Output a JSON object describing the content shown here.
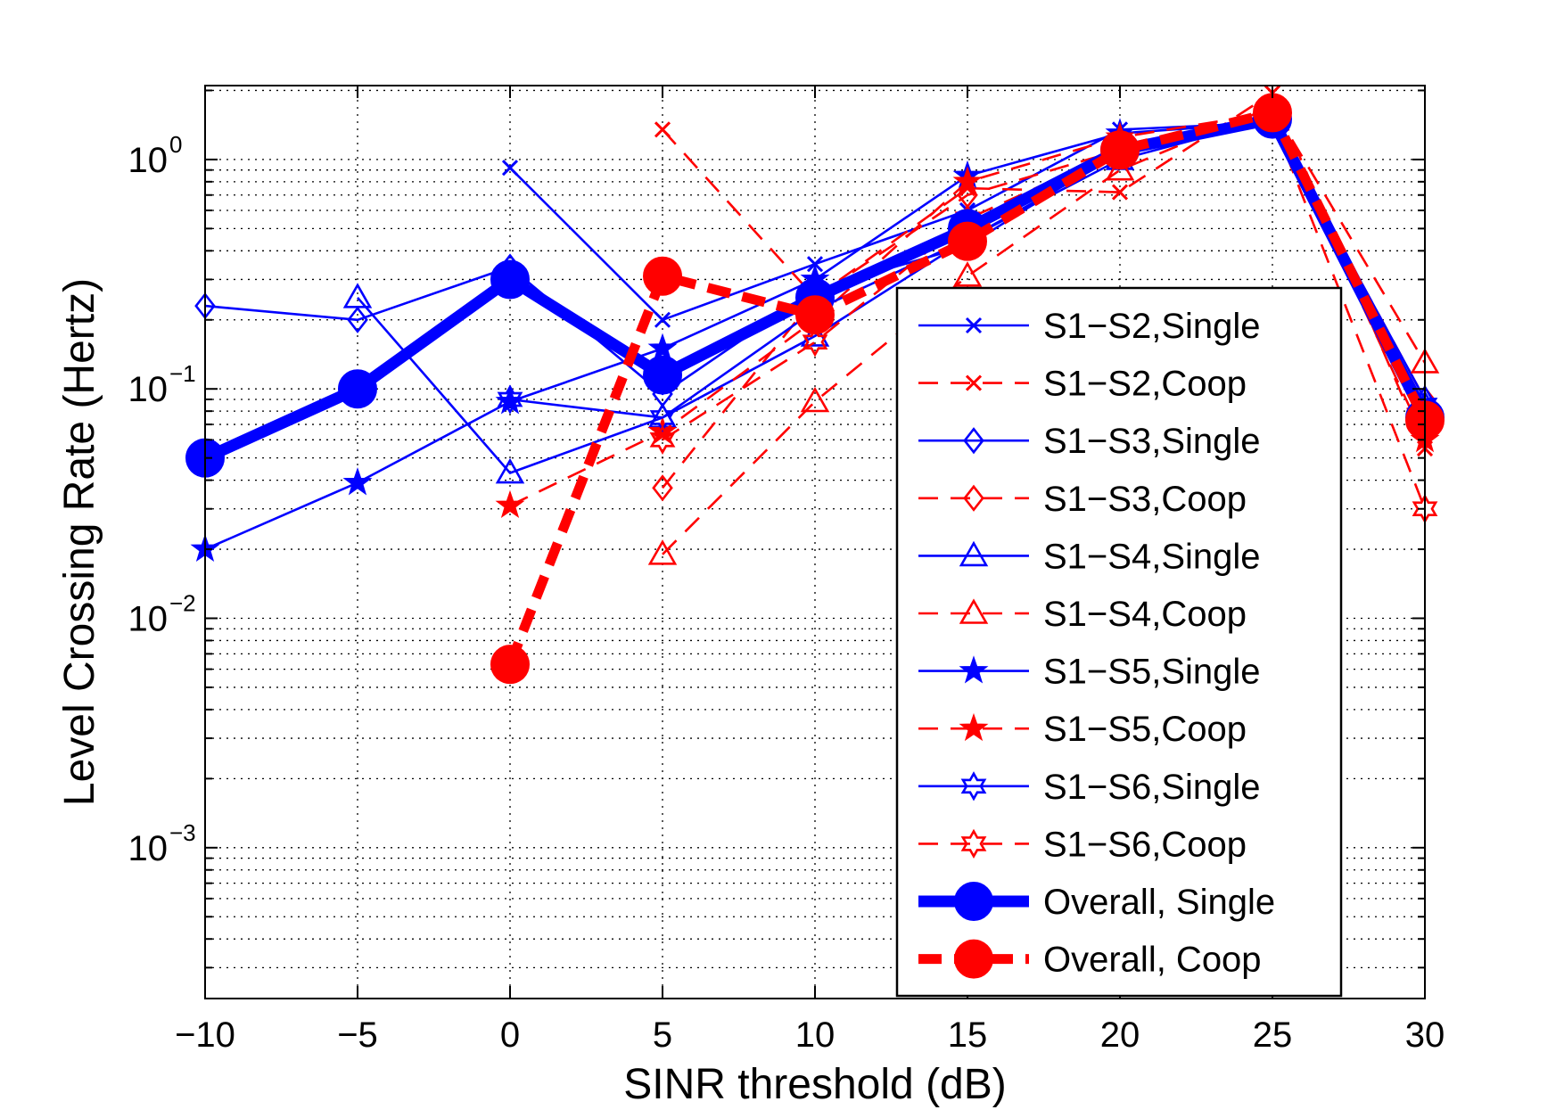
{
  "chart_data": {
    "type": "line",
    "xlabel": "SINR threshold (dB)",
    "ylabel": "Level Crossing Rate (Hertz)",
    "yscale": "log",
    "xlim": [
      -10,
      30
    ],
    "ylim": [
      0.00022,
      2.1
    ],
    "grid": true,
    "legend_position": "bottom-right",
    "x_ticks": [
      -10,
      -5,
      0,
      5,
      10,
      15,
      20,
      25,
      30
    ],
    "x_tick_labels": [
      "−10",
      "−5",
      "0",
      "5",
      "10",
      "15",
      "20",
      "25",
      "30"
    ],
    "y_ticks": [
      {
        "value": 1,
        "base": "10",
        "exp": "0"
      },
      {
        "value": 0.1,
        "base": "10",
        "exp": "−1"
      },
      {
        "value": 0.01,
        "base": "10",
        "exp": "−2"
      },
      {
        "value": 0.001,
        "base": "10",
        "exp": "−3"
      }
    ],
    "series": [
      {
        "name": "S1−S2,Single",
        "color": "#0000ff",
        "dash": "solid",
        "marker": "x",
        "width": "thin",
        "points": [
          [
            0,
            0.92
          ],
          [
            5,
            0.2
          ],
          [
            10,
            0.35
          ],
          [
            15,
            0.6
          ],
          [
            20,
            1.35
          ],
          [
            25,
            1.45
          ],
          [
            30,
            0.07
          ]
        ]
      },
      {
        "name": "S1−S2,Coop",
        "color": "#ff0000",
        "dash": "dashed",
        "marker": "x",
        "width": "thin",
        "points": [
          [
            5,
            1.35
          ],
          [
            10,
            0.25
          ],
          [
            15,
            0.75
          ],
          [
            20,
            0.72
          ],
          [
            25,
            1.95
          ],
          [
            30,
            0.055
          ]
        ]
      },
      {
        "name": "S1−S3,Single",
        "color": "#0000ff",
        "dash": "solid",
        "marker": "diamond",
        "width": "thin",
        "points": [
          [
            -10,
            0.23
          ],
          [
            -5,
            0.2
          ],
          [
            0,
            0.34
          ],
          [
            5,
            0.095
          ],
          [
            10,
            0.27
          ],
          [
            15,
            0.42
          ],
          [
            20,
            1.1
          ],
          [
            25,
            1.55
          ],
          [
            30,
            0.08
          ]
        ]
      },
      {
        "name": "S1−S3,Coop",
        "color": "#ff0000",
        "dash": "dashed",
        "marker": "diamond",
        "width": "thin",
        "points": [
          [
            5,
            0.037
          ],
          [
            10,
            0.25
          ],
          [
            15,
            0.7
          ],
          [
            20,
            1.1
          ],
          [
            25,
            1.5
          ],
          [
            30,
            0.09
          ]
        ]
      },
      {
        "name": "S1−S4,Single",
        "color": "#0000ff",
        "dash": "solid",
        "marker": "triangle",
        "width": "thin",
        "points": [
          [
            -5,
            0.25
          ],
          [
            0,
            0.043
          ],
          [
            5,
            0.075
          ],
          [
            10,
            0.17
          ],
          [
            15,
            0.45
          ],
          [
            20,
            1.0
          ],
          [
            25,
            1.5
          ],
          [
            30,
            0.09
          ]
        ]
      },
      {
        "name": "S1−S4,Coop",
        "color": "#ff0000",
        "dash": "dashed",
        "marker": "triangle",
        "width": "thin",
        "points": [
          [
            5,
            0.019
          ],
          [
            10,
            0.088
          ],
          [
            15,
            0.31
          ],
          [
            20,
            0.9
          ],
          [
            25,
            1.7
          ],
          [
            30,
            0.13
          ]
        ]
      },
      {
        "name": "S1−S5,Single",
        "color": "#0000ff",
        "dash": "solid",
        "marker": "star",
        "width": "thin",
        "points": [
          [
            -10,
            0.02
          ],
          [
            -5,
            0.039
          ],
          [
            0,
            0.088
          ],
          [
            5,
            0.15
          ],
          [
            10,
            0.3
          ],
          [
            15,
            0.85
          ],
          [
            20,
            1.3
          ],
          [
            25,
            1.45
          ],
          [
            30,
            0.075
          ]
        ]
      },
      {
        "name": "S1−S5,Coop",
        "color": "#ff0000",
        "dash": "dashed",
        "marker": "star",
        "width": "thin",
        "points": [
          [
            0,
            0.031
          ],
          [
            5,
            0.065
          ],
          [
            10,
            0.2
          ],
          [
            15,
            0.8
          ],
          [
            20,
            1.25
          ],
          [
            25,
            1.6
          ],
          [
            30,
            0.06
          ]
        ]
      },
      {
        "name": "S1−S6,Single",
        "color": "#0000ff",
        "dash": "solid",
        "marker": "hexagram",
        "width": "thin",
        "points": [
          [
            0,
            0.09
          ],
          [
            5,
            0.075
          ],
          [
            10,
            0.22
          ],
          [
            15,
            0.45
          ],
          [
            20,
            1.05
          ],
          [
            25,
            1.5
          ],
          [
            30,
            0.085
          ]
        ]
      },
      {
        "name": "S1−S6,Coop",
        "color": "#ff0000",
        "dash": "dashed",
        "marker": "hexagram",
        "width": "thin",
        "points": [
          [
            5,
            0.06
          ],
          [
            10,
            0.16
          ],
          [
            15,
            0.55
          ],
          [
            20,
            1.1
          ],
          [
            25,
            1.5
          ],
          [
            30,
            0.03
          ]
        ]
      },
      {
        "name": "Overall, Single",
        "color": "#0000ff",
        "dash": "solid",
        "marker": "circle",
        "width": "thick",
        "points": [
          [
            -10,
            0.05
          ],
          [
            -5,
            0.1
          ],
          [
            0,
            0.3
          ],
          [
            5,
            0.115
          ],
          [
            10,
            0.25
          ],
          [
            15,
            0.5
          ],
          [
            20,
            1.1
          ],
          [
            25,
            1.5
          ],
          [
            30,
            0.075
          ]
        ]
      },
      {
        "name": "Overall, Coop",
        "color": "#ff0000",
        "dash": "dashed",
        "marker": "circle",
        "width": "thick",
        "points": [
          [
            0,
            0.0063
          ],
          [
            5,
            0.31
          ],
          [
            10,
            0.21
          ],
          [
            15,
            0.44
          ],
          [
            20,
            1.1
          ],
          [
            25,
            1.6
          ],
          [
            30,
            0.073
          ]
        ]
      }
    ]
  }
}
